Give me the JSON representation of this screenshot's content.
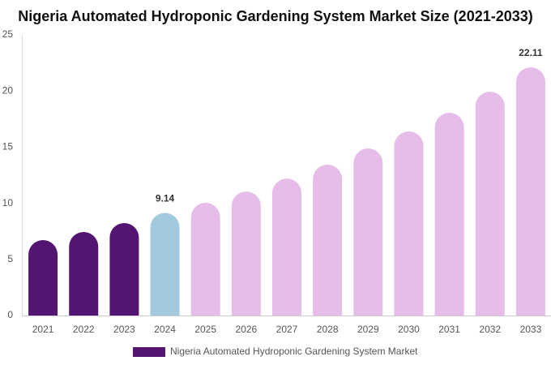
{
  "chart_data": {
    "type": "bar",
    "title": "Nigeria Automated Hydroponic Gardening System Market Size (2021-2033)",
    "categories": [
      "2021",
      "2022",
      "2023",
      "2024",
      "2025",
      "2026",
      "2027",
      "2028",
      "2029",
      "2030",
      "2031",
      "2032",
      "2033"
    ],
    "series": [
      {
        "name": "Nigeria Automated Hydroponic Gardening System Market",
        "color": "#541572",
        "values": [
          6.72,
          7.44,
          8.24,
          9.14,
          10.04,
          11.05,
          12.2,
          13.44,
          14.88,
          16.4,
          18.06,
          19.94,
          22.11
        ],
        "value_labels": [
          null,
          null,
          null,
          "9.14",
          null,
          null,
          null,
          null,
          null,
          null,
          null,
          null,
          "22.11"
        ],
        "colors": [
          "#541572",
          "#541572",
          "#541572",
          "#a3c9de",
          "#e6bde8",
          "#e6bde8",
          "#e6bde8",
          "#e6bde8",
          "#e6bde8",
          "#e6bde8",
          "#e6bde8",
          "#e6bde8",
          "#e6bde8"
        ]
      }
    ],
    "ylim": [
      0,
      25
    ],
    "yticks": [
      0,
      5,
      10,
      15,
      20,
      25
    ],
    "grid": false
  }
}
